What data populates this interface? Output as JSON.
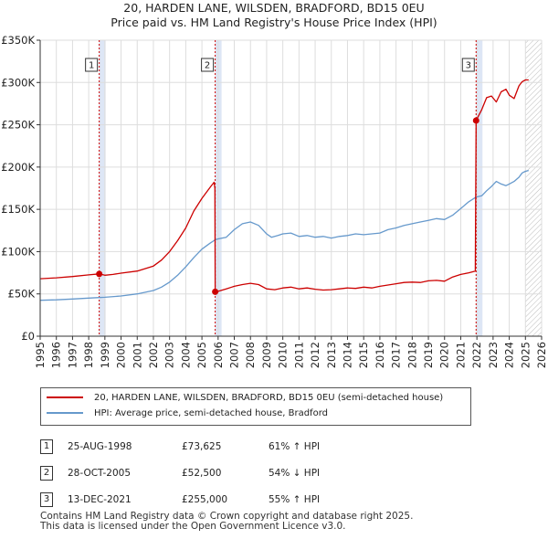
{
  "title_line1": "20, HARDEN LANE, WILSDEN, BRADFORD, BD15 0EU",
  "title_line2": "Price paid vs. HM Land Registry's House Price Index (HPI)",
  "chart_data": {
    "type": "line",
    "title": "20, HARDEN LANE, WILSDEN, BRADFORD, BD15 0EU — Price paid vs. HM Land Registry's House Price Index (HPI)",
    "xlabel": "",
    "ylabel": "",
    "xlim": [
      1995,
      2026
    ],
    "ylim": [
      0,
      350000
    ],
    "x_ticks": [
      1995,
      1996,
      1997,
      1998,
      1999,
      2000,
      2001,
      2002,
      2003,
      2004,
      2005,
      2006,
      2007,
      2008,
      2009,
      2010,
      2011,
      2012,
      2013,
      2014,
      2015,
      2016,
      2017,
      2018,
      2019,
      2020,
      2021,
      2022,
      2023,
      2024,
      2025,
      2026
    ],
    "y_ticks": [
      {
        "value": 0,
        "label": "£0"
      },
      {
        "value": 50000,
        "label": "£50K"
      },
      {
        "value": 100000,
        "label": "£100K"
      },
      {
        "value": 150000,
        "label": "£150K"
      },
      {
        "value": 200000,
        "label": "£200K"
      },
      {
        "value": 250000,
        "label": "£250K"
      },
      {
        "value": 300000,
        "label": "£300K"
      },
      {
        "value": 350000,
        "label": "£350K"
      }
    ],
    "grid": true,
    "series": [
      {
        "name": "20, HARDEN LANE, WILSDEN, BRADFORD, BD15 0EU (semi-detached house)",
        "color": "#cc0000",
        "points": [
          [
            1995.0,
            68000
          ],
          [
            1996.0,
            69000
          ],
          [
            1997.0,
            70500
          ],
          [
            1998.0,
            72500
          ],
          [
            1998.65,
            73625
          ],
          [
            1999.0,
            72000
          ],
          [
            1999.5,
            73000
          ],
          [
            2000.0,
            74500
          ],
          [
            2001.0,
            77000
          ],
          [
            2002.0,
            83000
          ],
          [
            2002.5,
            90000
          ],
          [
            2003.0,
            100000
          ],
          [
            2003.5,
            113000
          ],
          [
            2004.0,
            128000
          ],
          [
            2004.5,
            148000
          ],
          [
            2005.0,
            163000
          ],
          [
            2005.5,
            176000
          ],
          [
            2005.75,
            182000
          ],
          [
            2005.8,
            175000
          ],
          [
            2005.82,
            52500
          ],
          [
            2006.0,
            53000
          ],
          [
            2006.5,
            56000
          ],
          [
            2007.0,
            59000
          ],
          [
            2007.5,
            61000
          ],
          [
            2008.0,
            62500
          ],
          [
            2008.5,
            61000
          ],
          [
            2009.0,
            56000
          ],
          [
            2009.5,
            55000
          ],
          [
            2010.0,
            57000
          ],
          [
            2010.5,
            58000
          ],
          [
            2011.0,
            56000
          ],
          [
            2011.5,
            57000
          ],
          [
            2012.0,
            55500
          ],
          [
            2012.5,
            54500
          ],
          [
            2013.0,
            55000
          ],
          [
            2013.5,
            56000
          ],
          [
            2014.0,
            57000
          ],
          [
            2014.5,
            56500
          ],
          [
            2015.0,
            58000
          ],
          [
            2015.5,
            57000
          ],
          [
            2016.0,
            59000
          ],
          [
            2016.5,
            60500
          ],
          [
            2017.0,
            62000
          ],
          [
            2017.5,
            63500
          ],
          [
            2018.0,
            64000
          ],
          [
            2018.5,
            63500
          ],
          [
            2019.0,
            65500
          ],
          [
            2019.5,
            66000
          ],
          [
            2020.0,
            65000
          ],
          [
            2020.5,
            70000
          ],
          [
            2021.0,
            73000
          ],
          [
            2021.5,
            75000
          ],
          [
            2021.9,
            77000
          ],
          [
            2021.95,
            255000
          ],
          [
            2022.3,
            268000
          ],
          [
            2022.6,
            282000
          ],
          [
            2022.9,
            284000
          ],
          [
            2023.2,
            277000
          ],
          [
            2023.5,
            289000
          ],
          [
            2023.8,
            292000
          ],
          [
            2024.0,
            285000
          ],
          [
            2024.3,
            281000
          ],
          [
            2024.6,
            296000
          ],
          [
            2024.8,
            301000
          ],
          [
            2025.0,
            303000
          ],
          [
            2025.2,
            303000
          ]
        ]
      },
      {
        "name": "HPI: Average price, semi-detached house, Bradford",
        "color": "#6699cc",
        "points": [
          [
            1995.0,
            42500
          ],
          [
            1996.0,
            43000
          ],
          [
            1997.0,
            44000
          ],
          [
            1998.0,
            45000
          ],
          [
            1998.65,
            45700
          ],
          [
            1999.0,
            46000
          ],
          [
            2000.0,
            47500
          ],
          [
            2001.0,
            50000
          ],
          [
            2002.0,
            54000
          ],
          [
            2002.5,
            58000
          ],
          [
            2003.0,
            64000
          ],
          [
            2003.5,
            72000
          ],
          [
            2004.0,
            82000
          ],
          [
            2004.5,
            93000
          ],
          [
            2005.0,
            103000
          ],
          [
            2005.5,
            110000
          ],
          [
            2005.82,
            114000
          ],
          [
            2006.0,
            115000
          ],
          [
            2006.5,
            117000
          ],
          [
            2007.0,
            126000
          ],
          [
            2007.5,
            133000
          ],
          [
            2008.0,
            135000
          ],
          [
            2008.5,
            131000
          ],
          [
            2009.0,
            121000
          ],
          [
            2009.3,
            117000
          ],
          [
            2009.7,
            119000
          ],
          [
            2010.0,
            121000
          ],
          [
            2010.5,
            122000
          ],
          [
            2011.0,
            118000
          ],
          [
            2011.5,
            119000
          ],
          [
            2012.0,
            117000
          ],
          [
            2012.5,
            118000
          ],
          [
            2013.0,
            116000
          ],
          [
            2013.5,
            118000
          ],
          [
            2014.0,
            119000
          ],
          [
            2014.5,
            121000
          ],
          [
            2015.0,
            120000
          ],
          [
            2015.5,
            121000
          ],
          [
            2016.0,
            122000
          ],
          [
            2016.5,
            126000
          ],
          [
            2017.0,
            128000
          ],
          [
            2017.5,
            131000
          ],
          [
            2018.0,
            133000
          ],
          [
            2018.5,
            135000
          ],
          [
            2019.0,
            137000
          ],
          [
            2019.5,
            139000
          ],
          [
            2020.0,
            138000
          ],
          [
            2020.5,
            143000
          ],
          [
            2021.0,
            151000
          ],
          [
            2021.5,
            159000
          ],
          [
            2021.95,
            164500
          ],
          [
            2022.3,
            166000
          ],
          [
            2022.6,
            172000
          ],
          [
            2022.9,
            177000
          ],
          [
            2023.2,
            183000
          ],
          [
            2023.5,
            180000
          ],
          [
            2023.8,
            178000
          ],
          [
            2024.0,
            180000
          ],
          [
            2024.3,
            183000
          ],
          [
            2024.6,
            188000
          ],
          [
            2024.8,
            193000
          ],
          [
            2025.0,
            195000
          ],
          [
            2025.2,
            196000
          ]
        ]
      }
    ],
    "sales": [
      {
        "label": "1",
        "year": 1998.65,
        "price": 73625
      },
      {
        "label": "2",
        "year": 2005.82,
        "price": 52500
      },
      {
        "label": "3",
        "year": 2021.95,
        "price": 255000
      }
    ],
    "hatch_from_year": 2025.0
  },
  "legend": {
    "items": [
      {
        "label": "20, HARDEN LANE, WILSDEN, BRADFORD, BD15 0EU (semi-detached house)",
        "color": "#cc0000"
      },
      {
        "label": "HPI: Average price, semi-detached house, Bradford",
        "color": "#6699cc"
      }
    ]
  },
  "transactions": [
    {
      "num": "1",
      "date": "25-AUG-1998",
      "price": "£73,625",
      "hpi": "61% ↑ HPI"
    },
    {
      "num": "2",
      "date": "28-OCT-2005",
      "price": "£52,500",
      "hpi": "54% ↓ HPI"
    },
    {
      "num": "3",
      "date": "13-DEC-2021",
      "price": "£255,000",
      "hpi": "55% ↑ HPI"
    }
  ],
  "footer": {
    "line1": "Contains HM Land Registry data © Crown copyright and database right 2025.",
    "line2": "This data is licensed under the Open Government Licence v3.0."
  }
}
